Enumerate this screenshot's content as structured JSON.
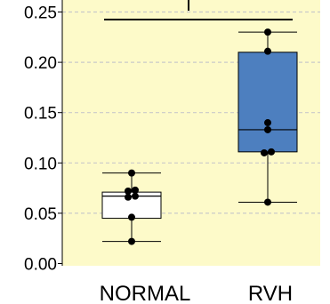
{
  "chart_data": {
    "type": "box",
    "title": "",
    "xlabel": "",
    "ylabel": "",
    "ylim": [
      0.0,
      0.255
    ],
    "yticks": [
      0.0,
      0.05,
      0.1,
      0.15,
      0.2,
      0.25
    ],
    "ytick_labels": [
      "0.00",
      "0.05",
      "0.10",
      "0.15",
      "0.20",
      "0.25"
    ],
    "grid": "horizontal dashed",
    "background": "#fdfac9",
    "categories": [
      "NORMAL",
      "RVH"
    ],
    "groups": [
      {
        "name": "NORMAL",
        "box_color": "#ffffff",
        "stats": {
          "min": 0.022,
          "q1": 0.045,
          "median": 0.067,
          "q3": 0.071,
          "max": 0.09
        },
        "points": [
          0.022,
          0.046,
          0.066,
          0.067,
          0.072,
          0.073,
          0.09
        ]
      },
      {
        "name": "RVH",
        "box_color": "#4d7fbf",
        "stats": {
          "min": 0.061,
          "q1": 0.111,
          "median": 0.133,
          "q3": 0.21,
          "max": 0.23
        },
        "points": [
          0.061,
          0.11,
          0.111,
          0.133,
          0.14,
          0.211,
          0.23
        ]
      }
    ],
    "significance_bracket": {
      "between": [
        "NORMAL",
        "RVH"
      ],
      "label": ""
    }
  }
}
